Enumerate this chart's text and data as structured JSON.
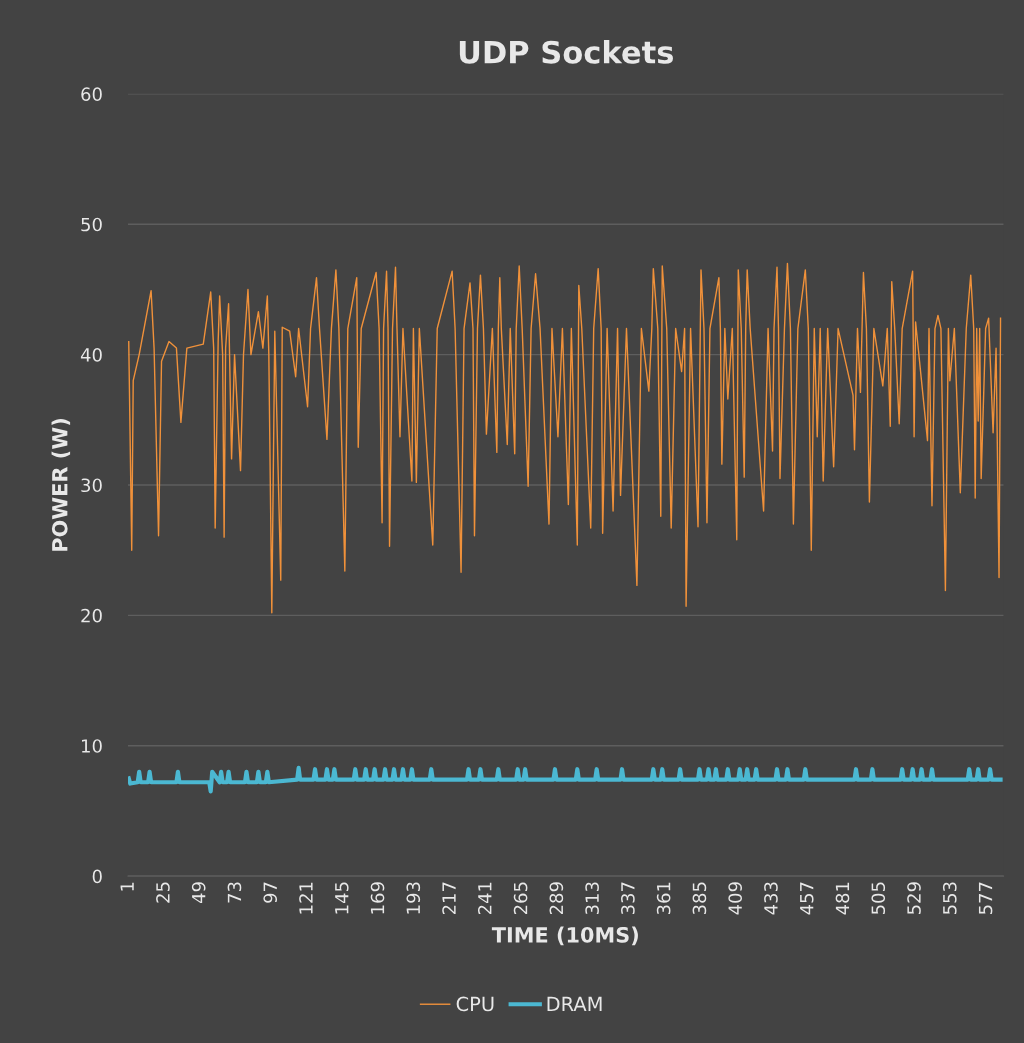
{
  "chart_data": {
    "type": "line",
    "title": "UDP Sockets",
    "xlabel": "TIME (10MS)",
    "ylabel": "POWER (W)",
    "xlim": [
      0.5,
      588
    ],
    "xticks": [
      1,
      25,
      49,
      73,
      97,
      121,
      145,
      169,
      193,
      217,
      241,
      265,
      289,
      313,
      337,
      361,
      385,
      409,
      433,
      457,
      481,
      505,
      529,
      553,
      577
    ],
    "ylim": [
      0,
      60
    ],
    "yticks": [
      0,
      10,
      20,
      30,
      40,
      50,
      60
    ],
    "grid": "y",
    "legend": "bottom",
    "marker": "none",
    "line_style": "solid",
    "series": [
      {
        "name": "CPU",
        "color": "#f0913a",
        "x": [
          1,
          3,
          4,
          8,
          16,
          18,
          21,
          23,
          28,
          33,
          36,
          40,
          51,
          56,
          58,
          59,
          61,
          62,
          64,
          65,
          66,
          68,
          70,
          72,
          76,
          78,
          81,
          83,
          88,
          91,
          94,
          95,
          97,
          99,
          103,
          104,
          109,
          113,
          115,
          121,
          123,
          127,
          129,
          134,
          137,
          140,
          142,
          146,
          148,
          154,
          155,
          157,
          167,
          169,
          171,
          172,
          174,
          175,
          176,
          178,
          180,
          181,
          183,
          185,
          191,
          192,
          194,
          196,
          205,
          208,
          218,
          220,
          224,
          226,
          230,
          232,
          233,
          235,
          237,
          239,
          241,
          245,
          248,
          249,
          250,
          251,
          255,
          257,
          260,
          261,
          263,
          265,
          269,
          271,
          274,
          277,
          283,
          285,
          289,
          292,
          296,
          298,
          302,
          303,
          305,
          311,
          313,
          316,
          318,
          319,
          322,
          326,
          329,
          331,
          335,
          342,
          345,
          350,
          352,
          353,
          356,
          358,
          359,
          362,
          365,
          368,
          372,
          374,
          375,
          378,
          383,
          385,
          387,
          389,
          391,
          397,
          398,
          399,
          401,
          403,
          406,
          409,
          410,
          412,
          414,
          415,
          416,
          418,
          427,
          430,
          433,
          434,
          436,
          437,
          438,
          441,
          443,
          445,
          447,
          450,
          455,
          457,
          459,
          461,
          463,
          465,
          467,
          470,
          474,
          477,
          487,
          488,
          490,
          492,
          494,
          496,
          498,
          501,
          507,
          510,
          512,
          513,
          515,
          518,
          520,
          527,
          528,
          529,
          537,
          538,
          540,
          542,
          544,
          546,
          549,
          551,
          552,
          555,
          559,
          563,
          566,
          568,
          569,
          570,
          571,
          572,
          573,
          576,
          578,
          581,
          583,
          585,
          586
        ],
        "values": [
          41,
          25,
          38,
          40,
          44.9,
          40.5,
          26.1,
          39.5,
          41,
          40.5,
          34.8,
          40.5,
          40.8,
          44.8,
          40.5,
          26.7,
          41,
          44.5,
          40,
          26,
          40.5,
          43.9,
          32,
          40,
          31.1,
          40,
          45,
          40,
          43.3,
          40.5,
          44.5,
          40,
          20.2,
          41.8,
          22.7,
          42.1,
          41.8,
          38.3,
          42,
          36,
          42,
          45.9,
          42,
          33.5,
          42,
          46.5,
          42,
          23.4,
          42,
          45.9,
          32.9,
          42,
          46.3,
          42,
          27.1,
          42,
          46.4,
          42,
          25.3,
          42,
          46.7,
          42,
          33.7,
          42,
          30.3,
          42,
          30.2,
          42,
          25.4,
          42,
          46.4,
          42,
          23.3,
          42,
          45.5,
          42,
          26.1,
          42,
          46.1,
          42,
          33.9,
          42,
          32.5,
          42,
          45.9,
          42,
          33.1,
          42,
          32.4,
          42,
          46.8,
          42,
          29.9,
          42,
          46.2,
          42,
          27,
          42,
          33.7,
          42,
          28.5,
          42,
          25.4,
          45.3,
          42,
          26.7,
          42,
          46.6,
          42,
          26.3,
          42,
          28,
          42,
          29.2,
          42,
          22.3,
          42,
          37.2,
          42,
          46.6,
          42,
          27.6,
          46.8,
          42,
          26.7,
          42,
          38.7,
          42,
          20.7,
          42,
          26.8,
          46.5,
          42,
          27.1,
          42,
          45.9,
          42,
          31.6,
          42,
          36.6,
          42,
          25.8,
          46.5,
          42,
          30.6,
          42,
          46.5,
          42,
          28,
          42,
          32.6,
          42,
          46.7,
          42,
          30.5,
          42,
          47,
          42,
          27,
          42,
          46.5,
          42,
          25,
          42,
          33.7,
          42,
          30.3,
          42,
          31.4,
          42,
          36.9,
          32.7,
          42,
          37.1,
          46.3,
          42,
          28.7,
          42,
          37.6,
          42,
          34.5,
          45.6,
          42,
          34.7,
          42,
          46.4,
          33.7,
          42.5,
          33.4,
          42,
          28.4,
          42,
          43,
          42,
          21.9,
          42,
          38,
          42,
          29.4,
          42,
          46.1,
          42,
          29,
          42,
          34.9,
          42,
          30.5,
          42,
          42.8,
          34,
          40.5,
          22.9,
          42.8
        ]
      },
      {
        "name": "DRAM",
        "color": "#4bb8d2",
        "x": [
          1,
          2,
          7,
          8,
          9,
          14,
          15,
          16,
          33,
          34,
          35,
          55,
          56,
          57,
          62,
          63,
          64,
          67,
          68,
          69,
          79,
          80,
          81,
          87,
          88,
          89,
          93,
          94,
          95,
          114,
          115,
          116,
          125,
          126,
          127,
          133,
          134,
          135,
          138,
          139,
          140,
          152,
          153,
          154,
          159,
          160,
          161,
          165,
          166,
          167,
          172,
          173,
          174,
          178,
          179,
          180,
          184,
          185,
          186,
          190,
          191,
          192,
          203,
          204,
          205,
          228,
          229,
          230,
          236,
          237,
          238,
          248,
          249,
          250,
          261,
          262,
          263,
          266,
          267,
          268,
          286,
          287,
          288,
          301,
          302,
          303,
          314,
          315,
          316,
          331,
          332,
          333,
          352,
          353,
          354,
          358,
          359,
          360,
          370,
          371,
          372,
          383,
          384,
          385,
          389,
          390,
          391,
          394,
          395,
          396,
          402,
          403,
          404,
          410,
          411,
          412,
          415,
          416,
          417,
          421,
          422,
          423,
          435,
          436,
          437,
          442,
          443,
          444,
          454,
          455,
          456,
          488,
          489,
          490,
          499,
          500,
          501,
          519,
          520,
          521,
          526,
          527,
          528,
          532,
          533,
          534,
          539,
          540,
          541,
          564,
          565,
          566,
          570,
          571,
          572,
          578,
          579,
          580,
          586
        ],
        "values": [
          7.5,
          7.1,
          7.2,
          8.0,
          7.2,
          7.2,
          8.0,
          7.2,
          7.2,
          8.0,
          7.2,
          7.2,
          6.5,
          8.0,
          7.2,
          8.0,
          7.2,
          7.2,
          8.0,
          7.2,
          7.2,
          8.0,
          7.2,
          7.2,
          8.0,
          7.2,
          7.2,
          8.0,
          7.2,
          7.4,
          8.3,
          7.4,
          7.4,
          8.2,
          7.4,
          7.4,
          8.2,
          7.4,
          7.4,
          8.2,
          7.4,
          7.4,
          8.2,
          7.4,
          7.4,
          8.2,
          7.4,
          7.4,
          8.2,
          7.4,
          7.4,
          8.2,
          7.4,
          7.4,
          8.2,
          7.4,
          7.4,
          8.2,
          7.4,
          7.4,
          8.2,
          7.4,
          7.4,
          8.2,
          7.4,
          7.4,
          8.2,
          7.4,
          7.4,
          8.2,
          7.4,
          7.4,
          8.2,
          7.4,
          7.4,
          8.2,
          7.4,
          7.4,
          8.2,
          7.4,
          7.4,
          8.2,
          7.4,
          7.4,
          8.2,
          7.4,
          7.4,
          8.2,
          7.4,
          7.4,
          8.2,
          7.4,
          7.4,
          8.2,
          7.4,
          7.4,
          8.2,
          7.4,
          7.4,
          8.2,
          7.4,
          7.4,
          8.2,
          7.4,
          7.4,
          8.2,
          7.4,
          7.4,
          8.2,
          7.4,
          7.4,
          8.2,
          7.4,
          7.4,
          8.2,
          7.4,
          7.4,
          8.2,
          7.4,
          7.4,
          8.2,
          7.4,
          7.4,
          8.2,
          7.4,
          7.4,
          8.2,
          7.4,
          7.4,
          8.2,
          7.4,
          7.4,
          8.2,
          7.4,
          7.4,
          8.2,
          7.4,
          7.4,
          8.2,
          7.4,
          7.4,
          8.2,
          7.4,
          7.4,
          8.2,
          7.4,
          7.4,
          8.2,
          7.4,
          7.4,
          8.2,
          7.4,
          7.4,
          8.2,
          7.4,
          7.4,
          8.2,
          7.4,
          7.4
        ]
      }
    ]
  }
}
